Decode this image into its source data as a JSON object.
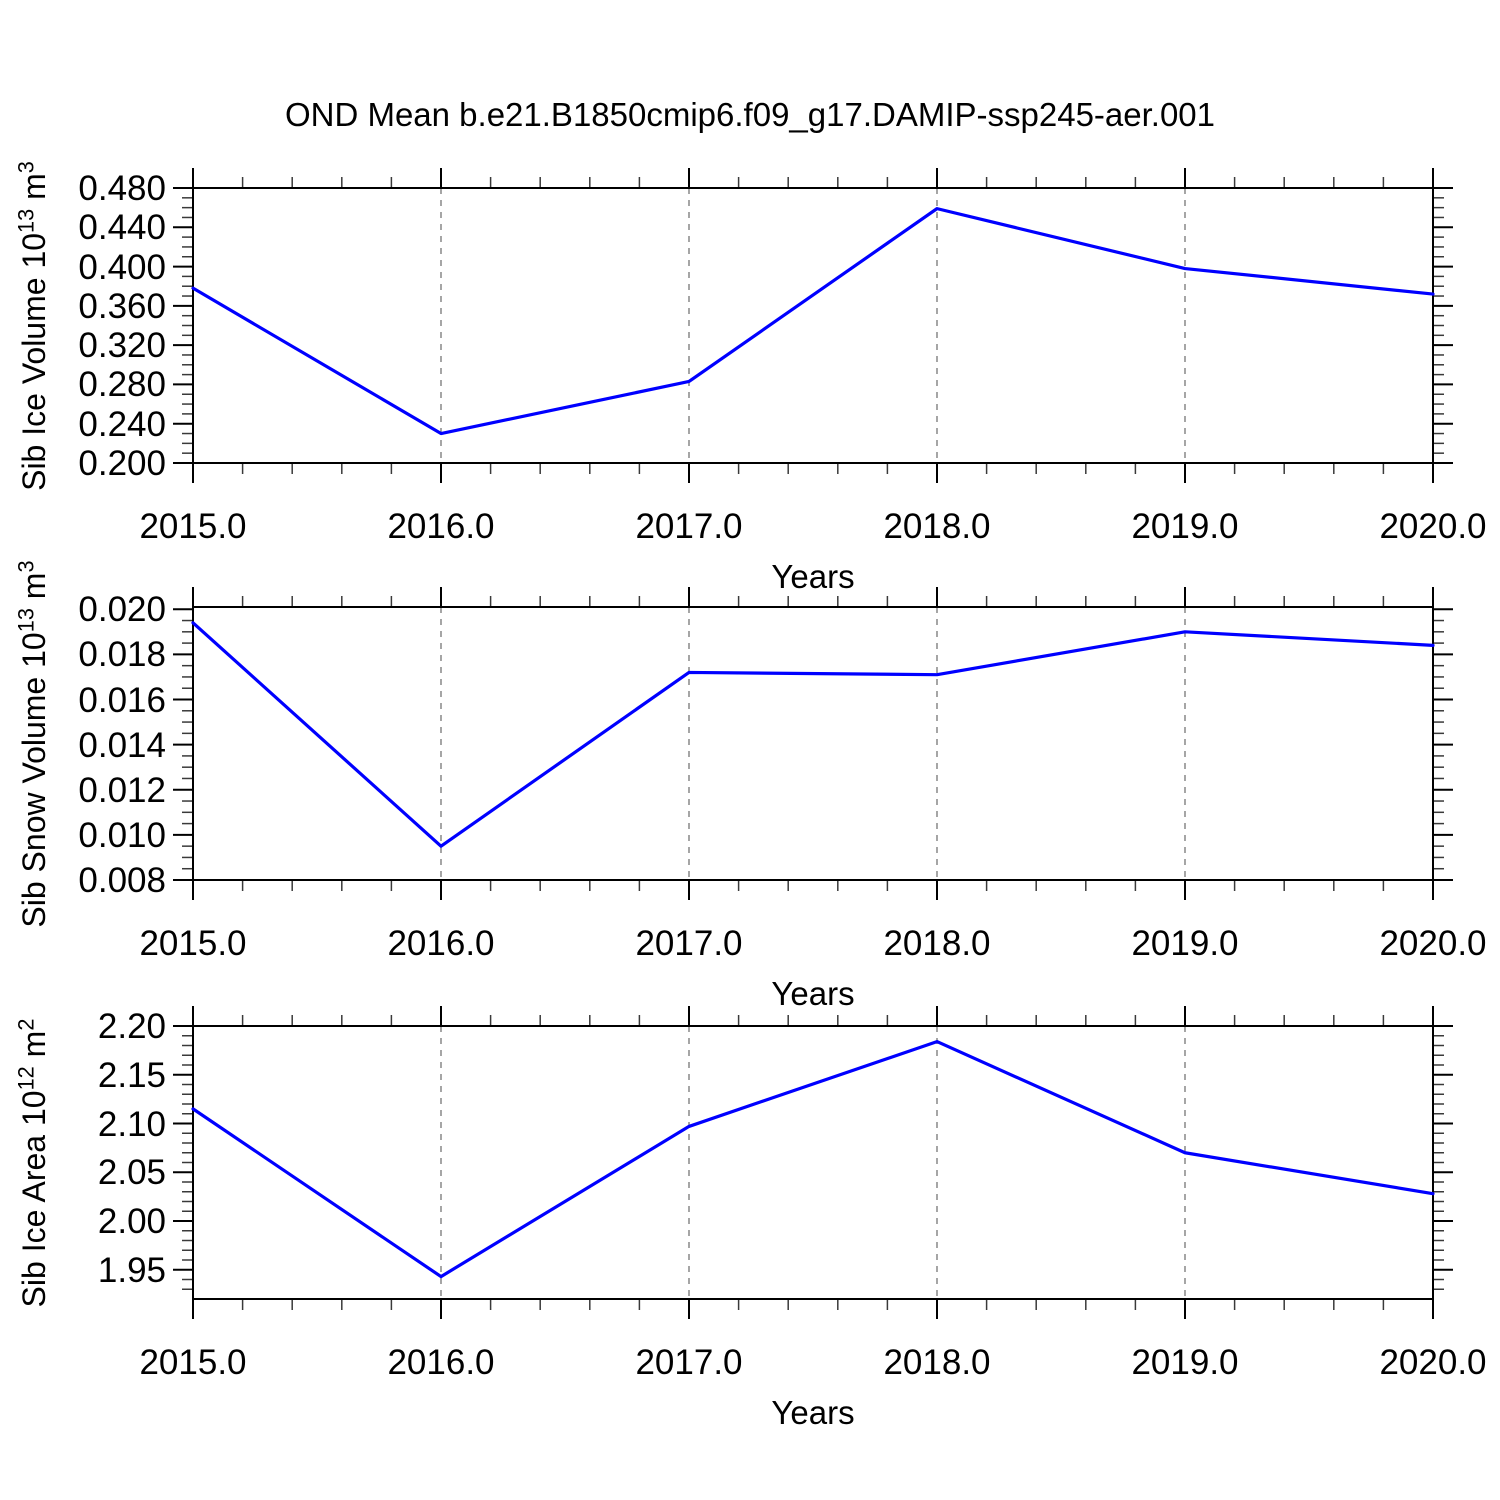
{
  "title": "OND Mean b.e21.B1850cmip6.f09_g17.DAMIP-ssp245-aer.001",
  "chart_data": [
    {
      "type": "line",
      "panel": "sib-ice-volume",
      "ylabel": "Sib Ice Volume 10^13 m^3",
      "ylabel_segments": [
        {
          "t": "Sib Ice Volume 10"
        },
        {
          "t": "13",
          "sup": true
        },
        {
          "t": " m"
        },
        {
          "t": "3",
          "sup": true
        }
      ],
      "xlabel": "Years",
      "x": [
        2015.0,
        2016.0,
        2017.0,
        2018.0,
        2019.0,
        2020.0
      ],
      "values": [
        0.378,
        0.23,
        0.283,
        0.459,
        0.398,
        0.372
      ],
      "xlim": [
        2015.0,
        2020.0
      ],
      "ylim": [
        0.2,
        0.48
      ],
      "yticks": [
        0.2,
        0.24,
        0.28,
        0.32,
        0.36,
        0.4,
        0.44,
        0.48
      ],
      "ytick_decimals": 3,
      "yminor_step": 0.01,
      "xticks": [
        2015.0,
        2016.0,
        2017.0,
        2018.0,
        2019.0,
        2020.0
      ],
      "xtick_decimals": 1,
      "xminor_step": 0.2,
      "grid_x": [
        2016.0,
        2017.0,
        2018.0,
        2019.0
      ],
      "line_color": "#0000ff",
      "grid": true,
      "legend": "none"
    },
    {
      "type": "line",
      "panel": "sib-snow-volume",
      "ylabel": "Sib Snow Volume 10^13 m^3",
      "ylabel_segments": [
        {
          "t": "Sib Snow Volume 10"
        },
        {
          "t": "13",
          "sup": true
        },
        {
          "t": " m"
        },
        {
          "t": "3",
          "sup": true
        }
      ],
      "xlabel": "Years",
      "x": [
        2015.0,
        2016.0,
        2017.0,
        2018.0,
        2019.0,
        2020.0
      ],
      "values": [
        0.0194,
        0.0095,
        0.0172,
        0.0171,
        0.019,
        0.0184
      ],
      "xlim": [
        2015.0,
        2020.0
      ],
      "ylim": [
        0.008,
        0.0201
      ],
      "yticks": [
        0.008,
        0.01,
        0.012,
        0.014,
        0.016,
        0.018,
        0.02
      ],
      "ytick_decimals": 3,
      "yminor_step": 0.0005,
      "xticks": [
        2015.0,
        2016.0,
        2017.0,
        2018.0,
        2019.0,
        2020.0
      ],
      "xtick_decimals": 1,
      "xminor_step": 0.2,
      "grid_x": [
        2016.0,
        2017.0,
        2018.0,
        2019.0
      ],
      "line_color": "#0000ff",
      "grid": true,
      "legend": "none"
    },
    {
      "type": "line",
      "panel": "sib-ice-area",
      "ylabel": "Sib Ice Area 10^12 m^2",
      "ylabel_segments": [
        {
          "t": "Sib Ice Area 10"
        },
        {
          "t": "12",
          "sup": true
        },
        {
          "t": " m"
        },
        {
          "t": "2",
          "sup": true
        }
      ],
      "xlabel": "Years",
      "x": [
        2015.0,
        2016.0,
        2017.0,
        2018.0,
        2019.0,
        2020.0
      ],
      "values": [
        2.115,
        1.943,
        2.097,
        2.184,
        2.07,
        2.028
      ],
      "xlim": [
        2015.0,
        2020.0
      ],
      "ylim": [
        1.92,
        2.2
      ],
      "yticks": [
        1.95,
        2.0,
        2.05,
        2.1,
        2.15,
        2.2
      ],
      "ytick_decimals": 2,
      "yminor_step": 0.01,
      "xticks": [
        2015.0,
        2016.0,
        2017.0,
        2018.0,
        2019.0,
        2020.0
      ],
      "xtick_decimals": 1,
      "xminor_step": 0.2,
      "grid_x": [
        2016.0,
        2017.0,
        2018.0,
        2019.0
      ],
      "line_color": "#0000ff",
      "grid": true,
      "legend": "none"
    }
  ],
  "colors": {
    "line": "#0000ff",
    "frame": "#000000",
    "gridline": "#7f7f7f",
    "minor_tick": "#3a3a3a"
  }
}
